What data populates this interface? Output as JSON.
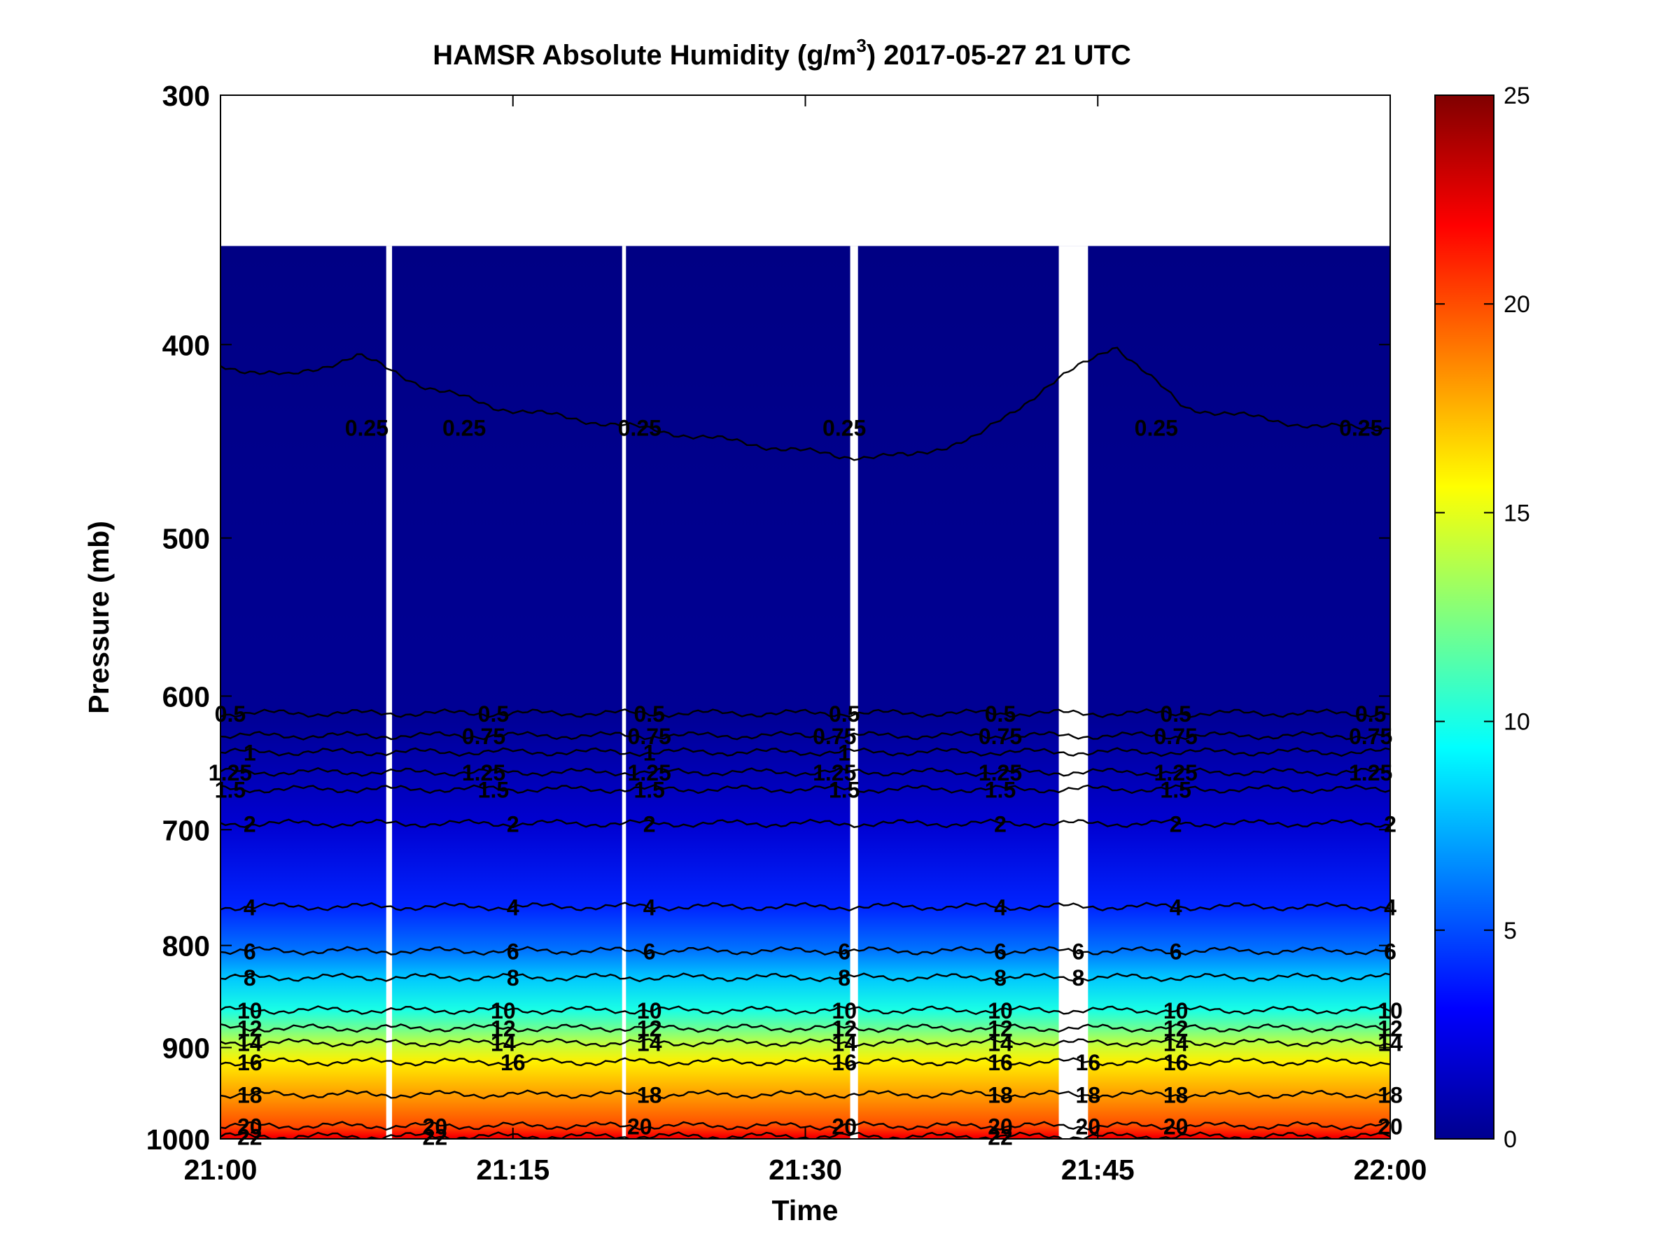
{
  "chart_data": {
    "type": "heatmap",
    "title_main": "HAMSR  Absolute Humidity (g/m",
    "title_sup": "3",
    "title_tail": ") 2017-05-27 21 UTC",
    "xlabel": "Time",
    "ylabel": "Pressure (mb)",
    "x_ticks": [
      "21:00",
      "21:15",
      "21:30",
      "21:45",
      "22:00"
    ],
    "x_tick_minutes": [
      0,
      15,
      30,
      45,
      60
    ],
    "xlim_minutes": [
      0,
      60
    ],
    "y_ticks": [
      300,
      400,
      500,
      600,
      700,
      800,
      900,
      1000
    ],
    "ylim": [
      300,
      1000
    ],
    "y_scale": "log",
    "y_reversed": true,
    "colorbar": {
      "colormap": "jet",
      "range": [
        0,
        25
      ],
      "ticks": [
        0,
        5,
        10,
        15,
        20,
        25
      ]
    },
    "data_top_pressure": 357,
    "missing_columns_minutes": [
      [
        8.5,
        8.8
      ],
      [
        20.6,
        20.8
      ],
      [
        32.3,
        32.7
      ],
      [
        43.0,
        44.5
      ]
    ],
    "contours": [
      {
        "level": 0.25,
        "label": "0.25",
        "base_pressure": 440,
        "pressure_offsets": [
          -30,
          -25,
          -35,
          -20,
          -10,
          -5,
          0,
          5,
          10,
          15,
          15,
          5,
          -20,
          -40,
          -10,
          -5,
          0,
          0
        ],
        "label_minutes": [
          7.5,
          12.5,
          21.5,
          32,
          48,
          58.5
        ]
      },
      {
        "level": 0.5,
        "label": "0.5",
        "base_pressure": 612,
        "label_minutes": [
          0.5,
          14,
          22,
          32,
          40,
          49,
          59
        ]
      },
      {
        "level": 0.75,
        "label": "0.75",
        "base_pressure": 628,
        "label_minutes": [
          13.5,
          22,
          31.5,
          40,
          49,
          59
        ]
      },
      {
        "level": 1,
        "label": "1",
        "base_pressure": 640,
        "label_minutes": [
          1.5,
          22,
          32
        ]
      },
      {
        "level": 1.25,
        "label": "1.25",
        "base_pressure": 655,
        "label_minutes": [
          0.5,
          13.5,
          22,
          31.5,
          40,
          49,
          59
        ]
      },
      {
        "level": 1.5,
        "label": "1.5",
        "base_pressure": 668,
        "label_minutes": [
          0.5,
          14,
          22,
          32,
          40,
          49
        ]
      },
      {
        "level": 2,
        "label": "2",
        "base_pressure": 695,
        "label_minutes": [
          1.5,
          15,
          22,
          40,
          49,
          60
        ]
      },
      {
        "level": 4,
        "label": "4",
        "base_pressure": 765,
        "label_minutes": [
          1.5,
          15,
          22,
          40,
          49,
          60
        ]
      },
      {
        "level": 6,
        "label": "6",
        "base_pressure": 805,
        "label_minutes": [
          1.5,
          15,
          22,
          32,
          40,
          44,
          49,
          60
        ]
      },
      {
        "level": 8,
        "label": "8",
        "base_pressure": 830,
        "label_minutes": [
          1.5,
          15,
          32,
          40,
          44
        ]
      },
      {
        "level": 10,
        "label": "10",
        "base_pressure": 862,
        "label_minutes": [
          1.5,
          14.5,
          22,
          32,
          40,
          49,
          60
        ]
      },
      {
        "level": 12,
        "label": "12",
        "base_pressure": 880,
        "label_minutes": [
          1.5,
          14.5,
          22,
          32,
          40,
          49,
          60
        ]
      },
      {
        "level": 14,
        "label": "14",
        "base_pressure": 895,
        "label_minutes": [
          1.5,
          14.5,
          22,
          32,
          40,
          49,
          60
        ]
      },
      {
        "level": 16,
        "label": "16",
        "base_pressure": 915,
        "label_minutes": [
          1.5,
          15,
          32,
          40,
          44.5,
          49
        ]
      },
      {
        "level": 18,
        "label": "18",
        "base_pressure": 950,
        "label_minutes": [
          1.5,
          22,
          40,
          44.5,
          49,
          60
        ]
      },
      {
        "level": 20,
        "label": "20",
        "base_pressure": 985,
        "label_minutes": [
          1.5,
          11,
          21.5,
          32,
          40,
          44.5,
          49,
          60
        ]
      },
      {
        "level": 22,
        "label": "22",
        "base_pressure": 997,
        "label_minutes": [
          1.5,
          11,
          40
        ]
      }
    ]
  }
}
